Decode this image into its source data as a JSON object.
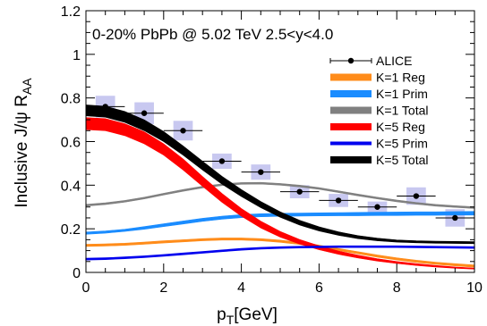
{
  "chart_data": {
    "type": "line",
    "annotation": "0-20% PbPb @ 5.02 TeV 2.5<y<4.0",
    "xlabel_main": "p",
    "xlabel_sub": "T",
    "xlabel_unit": "[GeV]",
    "ylabel_main": "Inclusive J/ψ R",
    "ylabel_sub": "AA",
    "xlim": [
      0,
      10
    ],
    "ylim": [
      0,
      1.2
    ],
    "xticks": [
      0,
      2,
      4,
      6,
      8,
      10
    ],
    "yticks": [
      0,
      0.2,
      0.4,
      0.6,
      0.8,
      1,
      1.2
    ],
    "xtick_labels": [
      "0",
      "2",
      "4",
      "6",
      "8",
      "10"
    ],
    "ytick_labels": [
      "0",
      "0.2",
      "0.4",
      "0.6",
      "0.8",
      "1",
      "1.2"
    ],
    "legend_position": "top-right",
    "data_points": {
      "name": "ALICE",
      "color": "#000000",
      "box_color": "#c8c8f0",
      "x": [
        0.5,
        1.5,
        2.5,
        3.5,
        4.5,
        5.5,
        6.5,
        7.5,
        8.5,
        9.5
      ],
      "y": [
        0.76,
        0.73,
        0.65,
        0.51,
        0.46,
        0.37,
        0.33,
        0.3,
        0.35,
        0.25
      ],
      "sys_err": [
        0.05,
        0.05,
        0.045,
        0.035,
        0.035,
        0.03,
        0.03,
        0.025,
        0.04,
        0.04
      ],
      "x_halfwidth": 0.5
    },
    "series": [
      {
        "name": "K=1 Reg",
        "color": "#ff8c1a",
        "band": true,
        "x": [
          0,
          0.5,
          1,
          1.5,
          2,
          2.5,
          3,
          3.5,
          4,
          4.5,
          5,
          5.5,
          6,
          6.5,
          7,
          7.5,
          8,
          8.5,
          9,
          9.5,
          10
        ],
        "low": [
          0.119,
          0.121,
          0.124,
          0.129,
          0.135,
          0.14,
          0.145,
          0.148,
          0.148,
          0.145,
          0.138,
          0.128,
          0.115,
          0.1,
          0.085,
          0.07,
          0.057,
          0.046,
          0.037,
          0.03,
          0.024
        ],
        "high": [
          0.129,
          0.131,
          0.134,
          0.139,
          0.145,
          0.15,
          0.155,
          0.158,
          0.158,
          0.155,
          0.148,
          0.138,
          0.125,
          0.11,
          0.095,
          0.08,
          0.067,
          0.056,
          0.047,
          0.04,
          0.034
        ]
      },
      {
        "name": "K=1 Prim",
        "color": "#1a8cff",
        "band": true,
        "x": [
          0,
          0.5,
          1,
          1.5,
          2,
          2.5,
          3,
          3.5,
          4,
          4.5,
          5,
          5.5,
          6,
          6.5,
          7,
          7.5,
          8,
          8.5,
          9,
          9.5,
          10
        ],
        "low": [
          0.175,
          0.18,
          0.188,
          0.198,
          0.21,
          0.222,
          0.234,
          0.244,
          0.251,
          0.255,
          0.257,
          0.258,
          0.259,
          0.26,
          0.26,
          0.261,
          0.261,
          0.262,
          0.262,
          0.263,
          0.263
        ],
        "high": [
          0.185,
          0.19,
          0.198,
          0.21,
          0.223,
          0.236,
          0.248,
          0.258,
          0.265,
          0.269,
          0.271,
          0.272,
          0.273,
          0.274,
          0.275,
          0.276,
          0.277,
          0.278,
          0.278,
          0.279,
          0.28
        ]
      },
      {
        "name": "K=1 Total",
        "color": "#808080",
        "band": true,
        "x": [
          0,
          0.5,
          1,
          1.5,
          2,
          2.5,
          3,
          3.5,
          4,
          4.5,
          5,
          5.5,
          6,
          6.5,
          7,
          7.5,
          8,
          8.5,
          9,
          9.5,
          10
        ],
        "low": [
          0.304,
          0.311,
          0.322,
          0.337,
          0.355,
          0.372,
          0.387,
          0.398,
          0.404,
          0.405,
          0.4,
          0.392,
          0.381,
          0.366,
          0.351,
          0.337,
          0.324,
          0.313,
          0.304,
          0.298,
          0.293
        ],
        "high": [
          0.312,
          0.319,
          0.33,
          0.345,
          0.363,
          0.38,
          0.395,
          0.406,
          0.412,
          0.413,
          0.408,
          0.4,
          0.389,
          0.374,
          0.359,
          0.345,
          0.332,
          0.321,
          0.312,
          0.306,
          0.301
        ]
      },
      {
        "name": "K=5 Reg",
        "color": "#ff0000",
        "band": true,
        "x": [
          0,
          0.5,
          1,
          1.5,
          2,
          2.5,
          3,
          3.5,
          4,
          4.5,
          5,
          5.5,
          6,
          6.5,
          7,
          7.5,
          8,
          8.5,
          9,
          9.5,
          10
        ],
        "low": [
          0.655,
          0.65,
          0.627,
          0.59,
          0.538,
          0.47,
          0.395,
          0.322,
          0.258,
          0.204,
          0.162,
          0.13,
          0.104,
          0.083,
          0.066,
          0.052,
          0.041,
          0.032,
          0.025,
          0.019,
          0.015
        ],
        "high": [
          0.71,
          0.705,
          0.682,
          0.645,
          0.59,
          0.52,
          0.44,
          0.362,
          0.293,
          0.235,
          0.188,
          0.151,
          0.122,
          0.098,
          0.079,
          0.063,
          0.05,
          0.04,
          0.032,
          0.025,
          0.02
        ]
      },
      {
        "name": "K=5 Prim",
        "color": "#0000ee",
        "band": false,
        "x": [
          0,
          0.5,
          1,
          1.5,
          2,
          2.5,
          3,
          3.5,
          4,
          4.5,
          5,
          5.5,
          6,
          6.5,
          7,
          7.5,
          8,
          8.5,
          9,
          9.5,
          10
        ],
        "low": [
          0.058,
          0.06,
          0.064,
          0.069,
          0.075,
          0.082,
          0.089,
          0.096,
          0.103,
          0.108,
          0.111,
          0.113,
          0.114,
          0.115,
          0.115,
          0.115,
          0.115,
          0.114,
          0.113,
          0.112,
          0.111
        ],
        "high": [
          0.064,
          0.066,
          0.07,
          0.075,
          0.081,
          0.088,
          0.095,
          0.102,
          0.109,
          0.114,
          0.117,
          0.119,
          0.12,
          0.121,
          0.121,
          0.121,
          0.121,
          0.12,
          0.119,
          0.118,
          0.117
        ]
      },
      {
        "name": "K=5 Total",
        "color": "#000000",
        "band": true,
        "x": [
          0,
          0.5,
          1,
          1.5,
          2,
          2.5,
          3,
          3.5,
          4,
          4.5,
          5,
          5.5,
          6,
          6.5,
          7,
          7.5,
          8,
          8.5,
          9,
          9.5,
          10
        ],
        "low": [
          0.718,
          0.712,
          0.688,
          0.65,
          0.6,
          0.538,
          0.47,
          0.405,
          0.348,
          0.297,
          0.253,
          0.217,
          0.19,
          0.17,
          0.155,
          0.145,
          0.139,
          0.136,
          0.134,
          0.133,
          0.132
        ],
        "high": [
          0.768,
          0.762,
          0.738,
          0.7,
          0.646,
          0.58,
          0.51,
          0.441,
          0.38,
          0.325,
          0.278,
          0.239,
          0.209,
          0.186,
          0.169,
          0.157,
          0.149,
          0.145,
          0.143,
          0.142,
          0.141
        ]
      }
    ]
  }
}
